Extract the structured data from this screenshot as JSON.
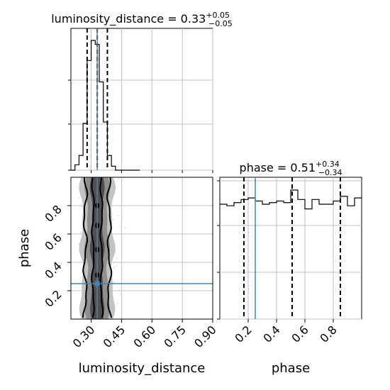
{
  "chart_data": {
    "type": "corner",
    "parameters": [
      "luminosity_distance",
      "phase"
    ],
    "titles": [
      {
        "name": "luminosity_distance",
        "prefix": "luminosity_distance = 0.33",
        "plus": "+0.05",
        "minus": "−0.05"
      },
      {
        "name": "phase",
        "prefix": "phase = 0.51",
        "plus": "+0.34",
        "minus": "−0.34"
      }
    ],
    "xlabels": [
      "luminosity_distance",
      "phase"
    ],
    "ylabel": "phase",
    "ranges": {
      "luminosity_distance": [
        0.2,
        0.9
      ],
      "phase": [
        0.0,
        1.0
      ]
    },
    "ticks": {
      "luminosity_distance": {
        "values": [
          0.3,
          0.45,
          0.6,
          0.75,
          0.9
        ],
        "labels": [
          "0.30",
          "0.45",
          "0.60",
          "0.75",
          "0.90"
        ]
      },
      "phase": {
        "values": [
          0.2,
          0.4,
          0.6,
          0.8
        ],
        "labels": [
          "0.2",
          "0.4",
          "0.6",
          "0.8"
        ]
      }
    },
    "hist_luminosity_distance": {
      "bin_edges": [
        0.2,
        0.22,
        0.24,
        0.26,
        0.28,
        0.3,
        0.32,
        0.34,
        0.36,
        0.38,
        0.4,
        0.42,
        0.44,
        0.46,
        0.48,
        0.5,
        0.52,
        0.54
      ],
      "counts": [
        0.0,
        0.04,
        0.11,
        0.35,
        0.82,
        0.97,
        0.94,
        0.66,
        0.36,
        0.11,
        0.03,
        0.0,
        0.0,
        0.0,
        0.0,
        0.0,
        0.0
      ],
      "quantiles": [
        0.28,
        0.33,
        0.38
      ],
      "truth": 0.33
    },
    "hist_phase": {
      "bin_edges": [
        0.0,
        0.05,
        0.1,
        0.15,
        0.2,
        0.25,
        0.3,
        0.35,
        0.4,
        0.45,
        0.5,
        0.55,
        0.6,
        0.65,
        0.7,
        0.75,
        0.8,
        0.85,
        0.9,
        0.95,
        1.0
      ],
      "counts": [
        0.73,
        0.72,
        0.74,
        0.76,
        0.77,
        0.75,
        0.73,
        0.74,
        0.75,
        0.74,
        0.82,
        0.76,
        0.7,
        0.76,
        0.73,
        0.73,
        0.75,
        0.78,
        0.72,
        0.77
      ],
      "quantiles": [
        0.17,
        0.51,
        0.85
      ],
      "truth": 0.25
    },
    "truth_point": {
      "luminosity_distance": 0.33,
      "phase": 0.25
    },
    "grid": true,
    "colors": {
      "hist": "#000000",
      "truth": "#4682b4",
      "quantile": "#000000",
      "density": "#4d4d4d",
      "points": "#b0b0b0"
    }
  }
}
